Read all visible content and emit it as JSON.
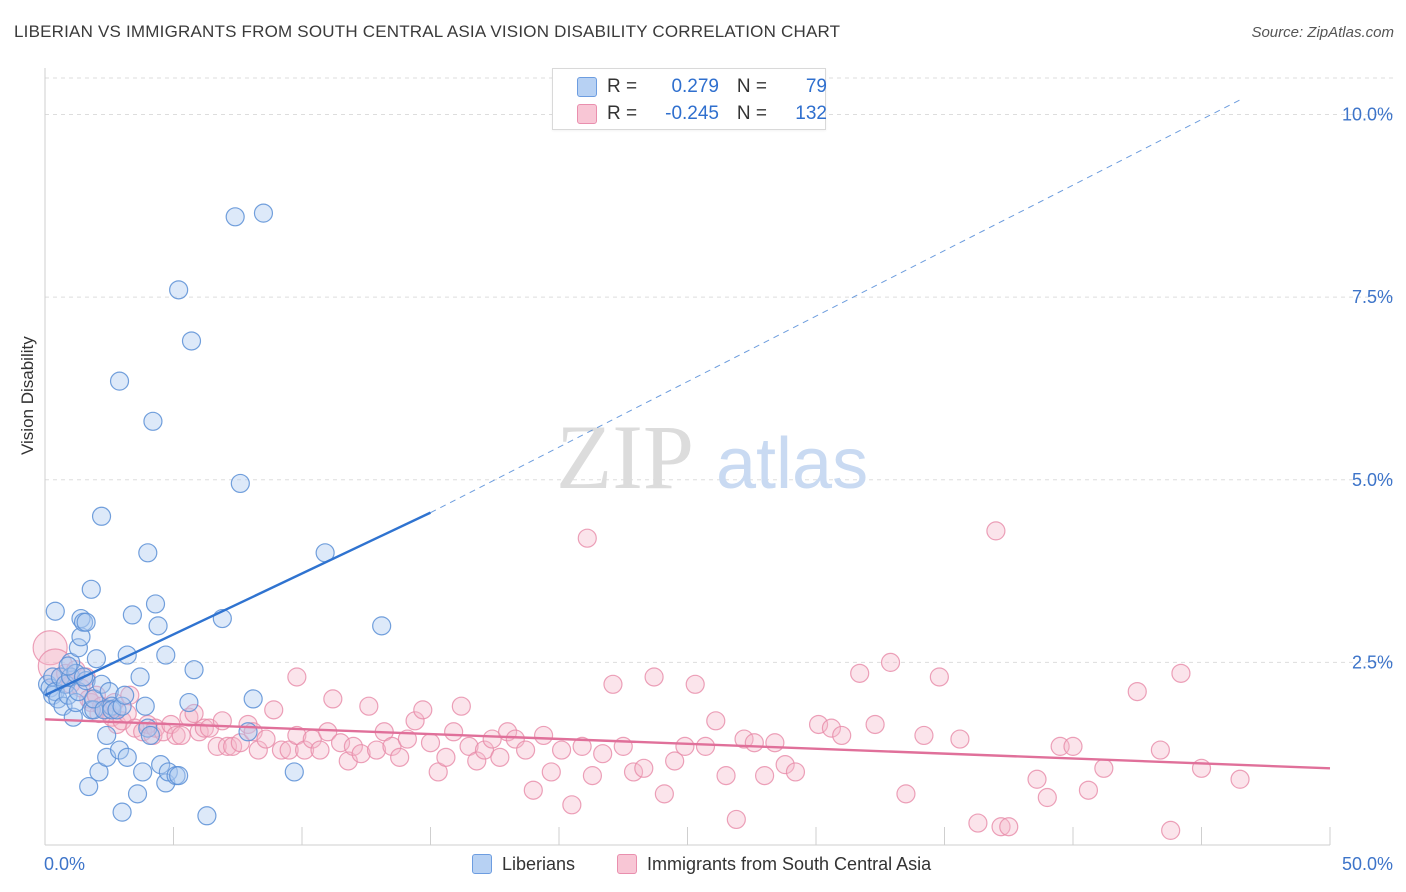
{
  "title": "LIBERIAN VS IMMIGRANTS FROM SOUTH CENTRAL ASIA VISION DISABILITY CORRELATION CHART",
  "source": "Source: ZipAtlas.com",
  "watermark": {
    "zip": "ZIP",
    "atlas": "atlas"
  },
  "legend": {
    "rows": [
      {
        "r_label": "R =",
        "r_value": "0.279",
        "n_label": "N =",
        "n_value": "79"
      },
      {
        "r_label": "R =",
        "r_value": "-0.245",
        "n_label": "N =",
        "n_value": "132"
      }
    ]
  },
  "bottom_legend": {
    "series1": "Liberians",
    "series2": "Immigrants from South Central Asia"
  },
  "colors": {
    "blue_fill": "#a9c8f0",
    "blue_stroke": "#5b8fd6",
    "blue_line": "#2f73d0",
    "pink_fill": "#f5b9cb",
    "pink_stroke": "#e78aa8",
    "pink_line": "#e0709a",
    "tick_label": "#3d74c9",
    "grid": "#dddddd"
  },
  "chart_data": {
    "type": "scatter",
    "title": "LIBERIAN VS IMMIGRANTS FROM SOUTH CENTRAL ASIA VISION DISABILITY CORRELATION CHART",
    "xlabel": "",
    "ylabel": "Vision Disability",
    "xlim": [
      0,
      50
    ],
    "ylim": [
      0,
      10.5
    ],
    "x_tick_labels": [
      "0.0%",
      "50.0%"
    ],
    "y_ticks": [
      2.5,
      5.0,
      7.5,
      10.0
    ],
    "y_tick_labels": [
      "2.5%",
      "5.0%",
      "7.5%",
      "10.0%"
    ],
    "grid": true,
    "legend_position": "top-center",
    "series": [
      {
        "name": "Liberians",
        "R": 0.279,
        "N": 79,
        "trend": {
          "x0": 0,
          "y0": 2.05,
          "x1": 15,
          "y1": 4.55,
          "dash_to_x": 46.5,
          "dash_to_y": 10.2
        },
        "points": [
          [
            0.1,
            2.2
          ],
          [
            0.2,
            2.15
          ],
          [
            0.3,
            2.05
          ],
          [
            0.3,
            2.3
          ],
          [
            0.4,
            3.2
          ],
          [
            0.4,
            2.1
          ],
          [
            0.5,
            2.0
          ],
          [
            0.6,
            2.3
          ],
          [
            0.7,
            1.9
          ],
          [
            0.8,
            2.2
          ],
          [
            0.9,
            2.05
          ],
          [
            1.0,
            2.5
          ],
          [
            1.0,
            2.3
          ],
          [
            1.1,
            1.75
          ],
          [
            1.2,
            2.35
          ],
          [
            1.2,
            1.95
          ],
          [
            1.3,
            2.1
          ],
          [
            1.3,
            2.7
          ],
          [
            1.4,
            2.85
          ],
          [
            1.4,
            3.1
          ],
          [
            1.5,
            3.05
          ],
          [
            1.6,
            3.05
          ],
          [
            1.6,
            2.25
          ],
          [
            1.7,
            0.8
          ],
          [
            1.8,
            3.5
          ],
          [
            1.8,
            1.85
          ],
          [
            1.9,
            1.85
          ],
          [
            1.9,
            2.0
          ],
          [
            2.0,
            2.55
          ],
          [
            2.1,
            1.0
          ],
          [
            2.2,
            2.2
          ],
          [
            2.2,
            4.5
          ],
          [
            2.3,
            1.85
          ],
          [
            2.4,
            1.2
          ],
          [
            2.4,
            1.5
          ],
          [
            2.5,
            2.1
          ],
          [
            2.6,
            1.9
          ],
          [
            2.6,
            1.85
          ],
          [
            2.8,
            1.85
          ],
          [
            2.9,
            1.3
          ],
          [
            3.0,
            1.9
          ],
          [
            3.0,
            0.45
          ],
          [
            3.1,
            2.05
          ],
          [
            3.2,
            1.2
          ],
          [
            3.2,
            2.6
          ],
          [
            3.4,
            3.15
          ],
          [
            3.6,
            0.7
          ],
          [
            3.7,
            2.3
          ],
          [
            3.8,
            1.0
          ],
          [
            3.9,
            1.9
          ],
          [
            4.0,
            4.0
          ],
          [
            4.0,
            1.6
          ],
          [
            4.1,
            1.5
          ],
          [
            4.2,
            5.8
          ],
          [
            4.3,
            3.3
          ],
          [
            4.4,
            3.0
          ],
          [
            4.5,
            1.1
          ],
          [
            4.7,
            0.85
          ],
          [
            4.7,
            2.6
          ],
          [
            4.8,
            1.0
          ],
          [
            5.1,
            0.95
          ],
          [
            5.2,
            0.95
          ],
          [
            5.2,
            7.6
          ],
          [
            5.6,
            1.95
          ],
          [
            5.7,
            6.9
          ],
          [
            5.8,
            2.4
          ],
          [
            6.3,
            0.4
          ],
          [
            6.9,
            3.1
          ],
          [
            7.4,
            8.6
          ],
          [
            7.6,
            4.95
          ],
          [
            7.9,
            1.55
          ],
          [
            8.1,
            2.0
          ],
          [
            8.5,
            8.65
          ],
          [
            2.9,
            6.35
          ],
          [
            9.7,
            1.0
          ],
          [
            10.9,
            4.0
          ],
          [
            13.1,
            3.0
          ],
          [
            1.5,
            2.3
          ],
          [
            0.9,
            2.45
          ]
        ]
      },
      {
        "name": "Immigrants from South Central Asia",
        "R": -0.245,
        "N": 132,
        "trend": {
          "x0": 0,
          "y0": 1.72,
          "x1": 50,
          "y1": 1.05
        },
        "points": [
          [
            0.2,
            2.7
          ],
          [
            0.4,
            2.45
          ],
          [
            0.6,
            2.3
          ],
          [
            0.8,
            2.35
          ],
          [
            1.0,
            2.2
          ],
          [
            1.2,
            2.4
          ],
          [
            1.4,
            2.15
          ],
          [
            1.6,
            2.3
          ],
          [
            1.7,
            2.0
          ],
          [
            1.8,
            1.95
          ],
          [
            2.0,
            2.05
          ],
          [
            2.1,
            1.8
          ],
          [
            2.2,
            1.9
          ],
          [
            2.4,
            1.85
          ],
          [
            2.6,
            1.75
          ],
          [
            2.7,
            1.95
          ],
          [
            2.8,
            1.65
          ],
          [
            3.0,
            1.7
          ],
          [
            3.2,
            1.8
          ],
          [
            3.3,
            2.05
          ],
          [
            3.5,
            1.6
          ],
          [
            3.8,
            1.55
          ],
          [
            4.0,
            1.65
          ],
          [
            4.2,
            1.5
          ],
          [
            4.3,
            1.6
          ],
          [
            4.6,
            1.55
          ],
          [
            4.9,
            1.65
          ],
          [
            5.1,
            1.5
          ],
          [
            5.3,
            1.5
          ],
          [
            5.6,
            1.75
          ],
          [
            5.8,
            1.8
          ],
          [
            6.0,
            1.55
          ],
          [
            6.2,
            1.6
          ],
          [
            6.4,
            1.6
          ],
          [
            6.7,
            1.35
          ],
          [
            6.9,
            1.7
          ],
          [
            7.1,
            1.35
          ],
          [
            7.3,
            1.35
          ],
          [
            7.6,
            1.4
          ],
          [
            7.9,
            1.65
          ],
          [
            8.1,
            1.55
          ],
          [
            8.3,
            1.3
          ],
          [
            8.6,
            1.45
          ],
          [
            8.9,
            1.85
          ],
          [
            9.2,
            1.3
          ],
          [
            9.5,
            1.3
          ],
          [
            9.8,
            1.5
          ],
          [
            10.1,
            1.3
          ],
          [
            10.4,
            1.45
          ],
          [
            10.7,
            1.3
          ],
          [
            11.0,
            1.55
          ],
          [
            11.2,
            2.0
          ],
          [
            11.5,
            1.4
          ],
          [
            11.8,
            1.15
          ],
          [
            12.0,
            1.35
          ],
          [
            12.3,
            1.25
          ],
          [
            12.6,
            1.9
          ],
          [
            12.9,
            1.3
          ],
          [
            13.2,
            1.55
          ],
          [
            13.5,
            1.35
          ],
          [
            13.8,
            1.2
          ],
          [
            14.1,
            1.45
          ],
          [
            14.4,
            1.7
          ],
          [
            14.7,
            1.85
          ],
          [
            15.0,
            1.4
          ],
          [
            15.3,
            1.0
          ],
          [
            15.6,
            1.2
          ],
          [
            15.9,
            1.55
          ],
          [
            16.2,
            1.9
          ],
          [
            16.5,
            1.35
          ],
          [
            16.8,
            1.15
          ],
          [
            17.1,
            1.3
          ],
          [
            17.4,
            1.45
          ],
          [
            17.7,
            1.2
          ],
          [
            18.0,
            1.55
          ],
          [
            18.3,
            1.45
          ],
          [
            18.7,
            1.3
          ],
          [
            19.0,
            0.75
          ],
          [
            19.4,
            1.5
          ],
          [
            19.7,
            1.0
          ],
          [
            20.1,
            1.3
          ],
          [
            20.5,
            0.55
          ],
          [
            20.9,
            1.35
          ],
          [
            21.3,
            0.95
          ],
          [
            21.7,
            1.25
          ],
          [
            22.1,
            2.2
          ],
          [
            22.5,
            1.35
          ],
          [
            22.9,
            1.0
          ],
          [
            23.3,
            1.05
          ],
          [
            23.7,
            2.3
          ],
          [
            24.1,
            0.7
          ],
          [
            24.5,
            1.15
          ],
          [
            24.9,
            1.35
          ],
          [
            25.3,
            2.2
          ],
          [
            25.7,
            1.35
          ],
          [
            26.1,
            1.7
          ],
          [
            26.5,
            0.95
          ],
          [
            26.9,
            0.35
          ],
          [
            27.2,
            1.45
          ],
          [
            27.6,
            1.4
          ],
          [
            28.0,
            0.95
          ],
          [
            28.4,
            1.4
          ],
          [
            28.8,
            1.1
          ],
          [
            29.2,
            1.0
          ],
          [
            30.1,
            1.65
          ],
          [
            30.6,
            1.6
          ],
          [
            31.0,
            1.5
          ],
          [
            31.7,
            2.35
          ],
          [
            32.3,
            1.65
          ],
          [
            32.9,
            2.5
          ],
          [
            33.5,
            0.7
          ],
          [
            34.2,
            1.5
          ],
          [
            34.8,
            2.3
          ],
          [
            35.6,
            1.45
          ],
          [
            36.3,
            0.3
          ],
          [
            37.0,
            4.3
          ],
          [
            37.2,
            0.25
          ],
          [
            37.5,
            0.25
          ],
          [
            38.6,
            0.9
          ],
          [
            39.0,
            0.65
          ],
          [
            39.5,
            1.35
          ],
          [
            40.0,
            1.35
          ],
          [
            40.6,
            0.75
          ],
          [
            41.2,
            1.05
          ],
          [
            42.5,
            2.1
          ],
          [
            43.4,
            1.3
          ],
          [
            43.8,
            0.2
          ],
          [
            44.2,
            2.35
          ],
          [
            45.0,
            1.05
          ],
          [
            46.5,
            0.9
          ],
          [
            21.1,
            4.2
          ],
          [
            9.8,
            2.3
          ]
        ]
      }
    ]
  }
}
